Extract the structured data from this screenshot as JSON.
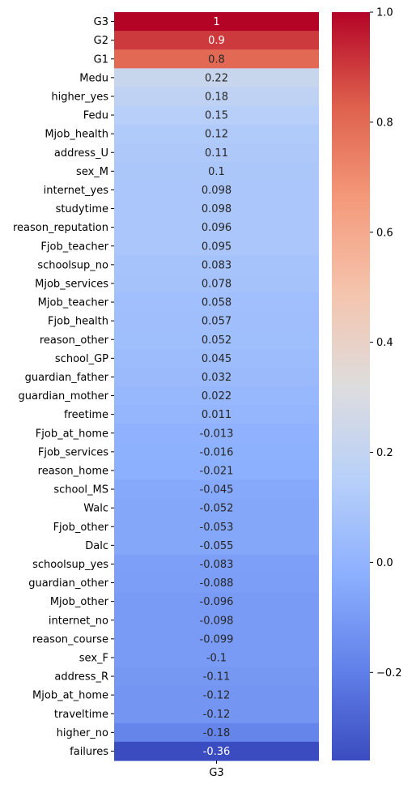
{
  "chart_data": {
    "type": "heatmap",
    "title": "",
    "columns": [
      "G3"
    ],
    "rows": [
      "G3",
      "G2",
      "G1",
      "Medu",
      "higher_yes",
      "Fedu",
      "Mjob_health",
      "address_U",
      "sex_M",
      "internet_yes",
      "studytime",
      "reason_reputation",
      "Fjob_teacher",
      "schoolsup_no",
      "Mjob_services",
      "Mjob_teacher",
      "Fjob_health",
      "reason_other",
      "school_GP",
      "guardian_father",
      "guardian_mother",
      "freetime",
      "Fjob_at_home",
      "Fjob_services",
      "reason_home",
      "school_MS",
      "Walc",
      "Fjob_other",
      "Dalc",
      "schoolsup_yes",
      "guardian_other",
      "Mjob_other",
      "internet_no",
      "reason_course",
      "sex_F",
      "address_R",
      "Mjob_at_home",
      "traveltime",
      "higher_no",
      "failures"
    ],
    "values": [
      1,
      0.9,
      0.8,
      0.22,
      0.18,
      0.15,
      0.12,
      0.11,
      0.1,
      0.098,
      0.098,
      0.096,
      0.095,
      0.083,
      0.078,
      0.058,
      0.057,
      0.052,
      0.045,
      0.032,
      0.022,
      0.011,
      -0.013,
      -0.016,
      -0.021,
      -0.045,
      -0.052,
      -0.053,
      -0.055,
      -0.083,
      -0.088,
      -0.096,
      -0.098,
      -0.099,
      -0.1,
      -0.11,
      -0.12,
      -0.12,
      -0.18,
      -0.36
    ],
    "labels": [
      "1",
      "0.9",
      "0.8",
      "0.22",
      "0.18",
      "0.15",
      "0.12",
      "0.11",
      "0.1",
      "0.098",
      "0.098",
      "0.096",
      "0.095",
      "0.083",
      "0.078",
      "0.058",
      "0.057",
      "0.052",
      "0.045",
      "0.032",
      "0.022",
      "0.011",
      "-0.013",
      "-0.016",
      "-0.021",
      "-0.045",
      "-0.052",
      "-0.053",
      "-0.055",
      "-0.083",
      "-0.088",
      "-0.096",
      "-0.098",
      "-0.099",
      "-0.1",
      "-0.11",
      "-0.12",
      "-0.12",
      "-0.18",
      "-0.36"
    ],
    "colormap": "coolwarm",
    "vmin": -0.36,
    "vmax": 1.0,
    "colorbar": {
      "ticks": [
        1.0,
        0.8,
        0.6,
        0.4,
        0.2,
        0.0,
        -0.2
      ],
      "tick_labels": [
        "1.0",
        "0.8",
        "0.6",
        "0.4",
        "0.2",
        "0.0",
        "−0.2"
      ]
    },
    "legend": "colorbar-right"
  }
}
